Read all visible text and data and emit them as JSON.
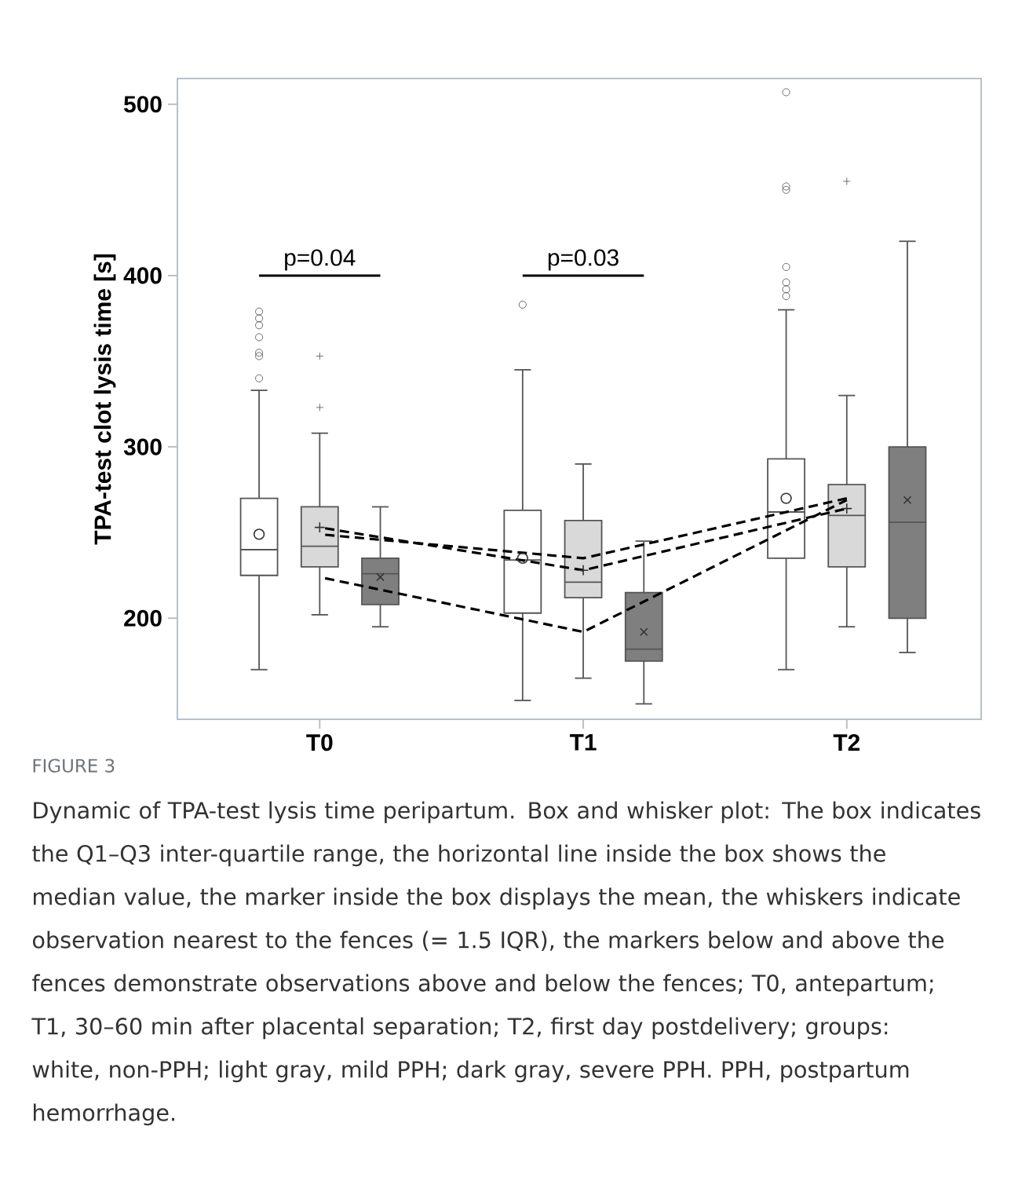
{
  "chart_data": {
    "type": "box",
    "ylabel": "TPA-test clot lysis time [s]",
    "categories": [
      "T0",
      "T1",
      "T2"
    ],
    "ylim": [
      141,
      515
    ],
    "yticks": [
      200,
      300,
      400,
      500
    ],
    "grid": false,
    "series": [
      {
        "color": "#ffffff",
        "marker": "circle",
        "boxes": [
          {
            "low": 170,
            "q1": 225,
            "median": 240,
            "q3": 270,
            "high": 333,
            "mean": 249,
            "outliers": [
              340,
              353,
              355,
              364,
              371,
              375,
              379
            ]
          },
          {
            "low": 152,
            "q1": 203,
            "median": 234,
            "q3": 263,
            "high": 345,
            "mean": 235,
            "outliers": [
              383
            ]
          },
          {
            "low": 170,
            "q1": 235,
            "median": 262,
            "q3": 293,
            "high": 380,
            "mean": 270,
            "outliers": [
              388,
              392,
              396,
              405,
              450,
              452,
              507
            ]
          }
        ]
      },
      {
        "color": "#d9d9d9",
        "marker": "plus",
        "boxes": [
          {
            "low": 202,
            "q1": 230,
            "median": 242,
            "q3": 265,
            "high": 308,
            "mean": 253,
            "outliers": [
              323,
              353
            ]
          },
          {
            "low": 165,
            "q1": 212,
            "median": 221,
            "q3": 257,
            "high": 290,
            "mean": 228
          },
          {
            "low": 195,
            "q1": 230,
            "median": 260,
            "q3": 278,
            "high": 330,
            "mean": 264,
            "outliers": [
              455
            ]
          }
        ]
      },
      {
        "color": "#7f7f7f",
        "marker": "cross",
        "boxes": [
          {
            "low": 195,
            "q1": 208,
            "median": 226,
            "q3": 235,
            "high": 265,
            "mean": 224
          },
          {
            "low": 150,
            "q1": 175,
            "median": 182,
            "q3": 215,
            "high": 245,
            "mean": 192
          },
          {
            "low": 180,
            "q1": 200,
            "median": 256,
            "q3": 300,
            "high": 420,
            "mean": 269
          }
        ]
      },
      {
        "type": "line",
        "color": "#000000",
        "line_style": "dashed",
        "values": [
          249,
          235,
          270
        ]
      },
      {
        "type": "line",
        "color": "#000000",
        "line_style": "dashed",
        "values": [
          253,
          228,
          264
        ]
      },
      {
        "type": "line",
        "color": "#000000",
        "line_style": "dashed",
        "values": [
          224,
          192,
          269
        ]
      }
    ],
    "annotations": [
      "p=0.04",
      "p=0.03",
      "FIGURE 3",
      "Dynamic of TPA-test lysis time peripartum. Box and whisker plot: The box indicates the Q1–Q3 inter-quartile range, the horizontal line inside the box shows the median value, the marker inside the box displays the mean, the whiskers indicate observation nearest to the fences (= 1.5 IQR), the markers below and above the fences demonstrate observations above and below the fences; T0, antepartum; T1, 30–60 min after placental separation; T2, first day postdelivery; groups: white, non-PPH; light gray, mild PPH; dark gray, severe PPH. PPH, postpartum hemorrhage."
    ]
  }
}
